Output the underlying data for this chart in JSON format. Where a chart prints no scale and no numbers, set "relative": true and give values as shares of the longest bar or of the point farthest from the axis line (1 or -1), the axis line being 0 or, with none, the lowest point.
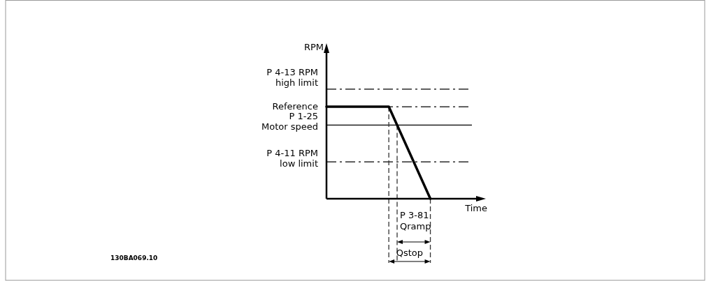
{
  "chart_data": {
    "type": "line",
    "relative": true,
    "xlabel": "Time",
    "line_style": "solid",
    "categories": [
      null,
      null,
      null,
      null,
      null,
      null,
      null,
      null
    ],
    "series": [
      {
        "color": "#000000",
        "values": [
          1,
          1,
          1,
          1,
          0.5,
          0,
          null,
          null
        ]
      }
    ],
    "ref_lines": [
      {
        "axis": "y",
        "value": 1.19,
        "label": "P 4-13 RPM\nhigh limit",
        "color": "#000000",
        "line_style": "dashed"
      },
      {
        "axis": "y",
        "value": 1,
        "label": "Reference",
        "color": "#000000",
        "line_style": "dashed"
      },
      {
        "axis": "y",
        "value": 0.8,
        "label": "P 1-25\nMotor speed",
        "color": "#000000",
        "line_style": "solid"
      },
      {
        "axis": "y",
        "value": 0.4,
        "label": "P 4-11 RPM\nlow limit",
        "color": "#000000",
        "line_style": "dashed"
      }
    ],
    "annotations": [
      "P 3-81\nQramp",
      "Qstop",
      "130BA069.10",
      "RPM"
    ]
  }
}
